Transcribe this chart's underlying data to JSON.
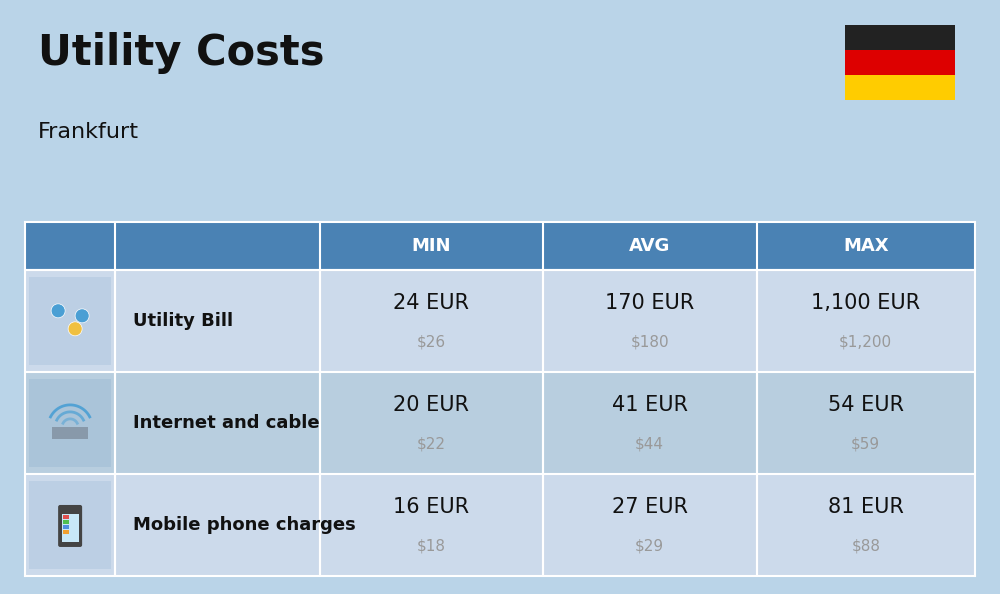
{
  "title": "Utility Costs",
  "subtitle": "Frankfurt",
  "background_color": "#bad4e8",
  "header_bg_color": "#4a82b4",
  "header_text_color": "#ffffff",
  "row_bg_odd": "#ccdaeb",
  "row_bg_even": "#b8cedf",
  "table_border_color": "#ffffff",
  "columns": [
    "",
    "",
    "MIN",
    "AVG",
    "MAX"
  ],
  "rows": [
    {
      "label": "Utility Bill",
      "min_eur": "24 EUR",
      "min_usd": "$26",
      "avg_eur": "170 EUR",
      "avg_usd": "$180",
      "max_eur": "1,100 EUR",
      "max_usd": "$1,200"
    },
    {
      "label": "Internet and cable",
      "min_eur": "20 EUR",
      "min_usd": "$22",
      "avg_eur": "41 EUR",
      "avg_usd": "$44",
      "max_eur": "54 EUR",
      "max_usd": "$59"
    },
    {
      "label": "Mobile phone charges",
      "min_eur": "16 EUR",
      "min_usd": "$18",
      "avg_eur": "27 EUR",
      "avg_usd": "$29",
      "max_eur": "81 EUR",
      "max_usd": "$88"
    }
  ],
  "flag_colors": [
    "#222222",
    "#dd0000",
    "#ffcc00"
  ],
  "title_fontsize": 30,
  "subtitle_fontsize": 16,
  "header_fontsize": 13,
  "eur_fontsize": 15,
  "usd_fontsize": 11,
  "label_fontsize": 13
}
